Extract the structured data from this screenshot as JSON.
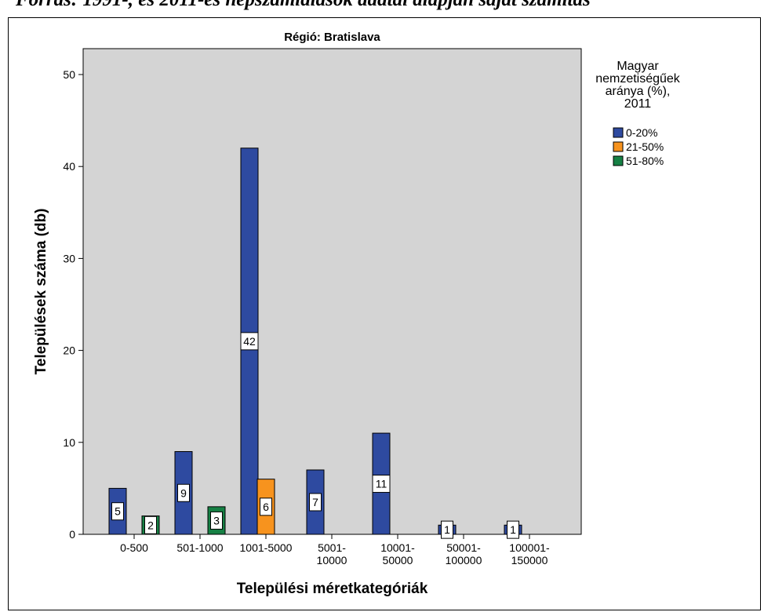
{
  "caption": "Forrás: 1991-, és 2011-es népszámlálások adatai alapján saját számítás",
  "chart_data": {
    "type": "bar",
    "title": "Régió: Bratislava",
    "xlabel": "Települési méretkategóriák",
    "ylabel": "Települések száma (db)",
    "ylim": [
      0,
      50
    ],
    "yticks": [
      0,
      10,
      20,
      30,
      40,
      50
    ],
    "grid": false,
    "legend_placement": "right",
    "legend_title": [
      "Magyar",
      "nemzetiségűek",
      "aránya (%),",
      "2011"
    ],
    "categories": [
      [
        "0-500"
      ],
      [
        "501-1000"
      ],
      [
        "1001-5000"
      ],
      [
        "5001-",
        "10000"
      ],
      [
        "10001-",
        "50000"
      ],
      [
        "50001-",
        "100000"
      ],
      [
        "100001-",
        "150000"
      ]
    ],
    "series": [
      {
        "name": "0-20%",
        "color": "#2E4AA0",
        "values": [
          5,
          9,
          42,
          7,
          11,
          1,
          1
        ]
      },
      {
        "name": "21-50%",
        "color": "#F7931E",
        "values": [
          null,
          null,
          6,
          null,
          null,
          null,
          null
        ]
      },
      {
        "name": "51-80%",
        "color": "#168044",
        "values": [
          2,
          3,
          null,
          null,
          null,
          null,
          null
        ]
      }
    ],
    "plot_background": "#D4D4D4"
  }
}
